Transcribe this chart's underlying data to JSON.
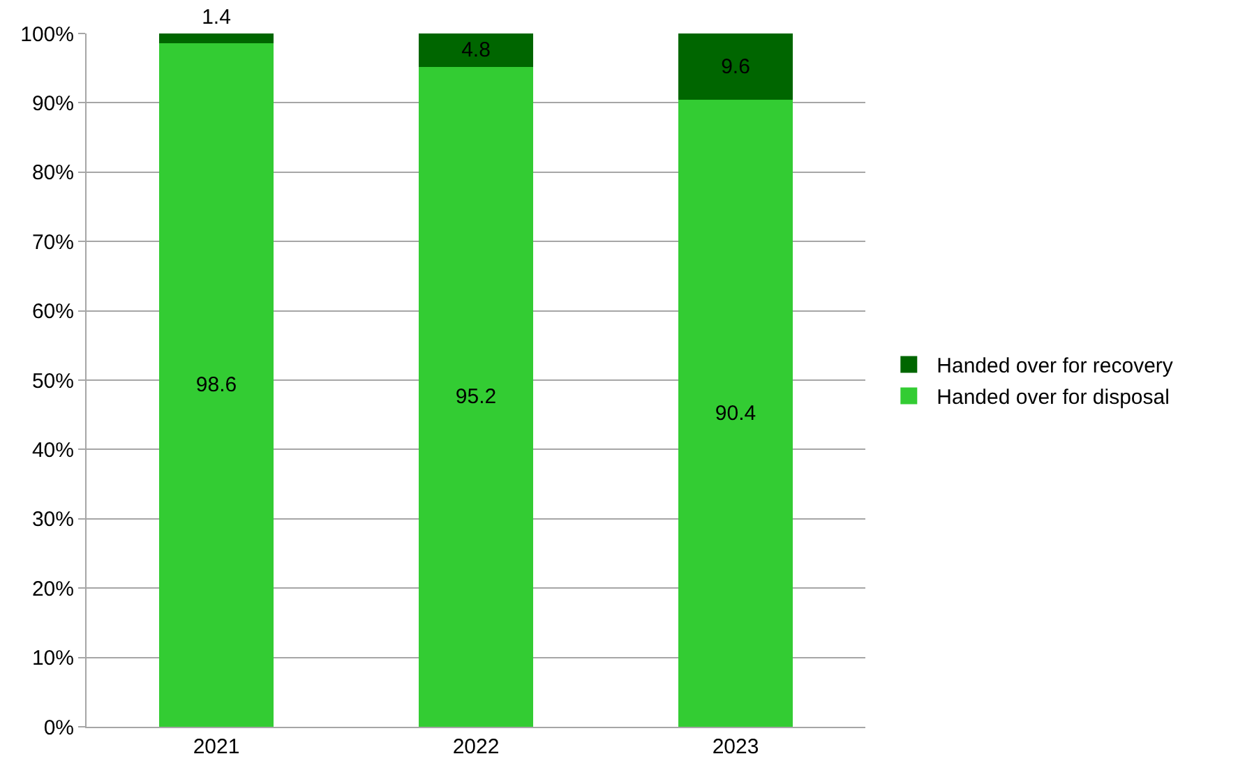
{
  "chart_data": {
    "type": "bar",
    "stacked": true,
    "categories": [
      "2021",
      "2022",
      "2023"
    ],
    "series": [
      {
        "name": "Handed over for disposal",
        "color": "#33cc33",
        "values": [
          98.6,
          95.2,
          90.4
        ]
      },
      {
        "name": "Handed over for recovery",
        "color": "#006600",
        "values": [
          1.4,
          4.8,
          9.6
        ]
      }
    ],
    "ylim": [
      0,
      100
    ],
    "yticks": [
      {
        "value": 0,
        "label": "0%"
      },
      {
        "value": 10,
        "label": "10%"
      },
      {
        "value": 20,
        "label": "20%"
      },
      {
        "value": 30,
        "label": "30%"
      },
      {
        "value": 40,
        "label": "40%"
      },
      {
        "value": 50,
        "label": "50%"
      },
      {
        "value": 60,
        "label": "60%"
      },
      {
        "value": 70,
        "label": "70%"
      },
      {
        "value": 80,
        "label": "80%"
      },
      {
        "value": 90,
        "label": "90%"
      },
      {
        "value": 100,
        "label": "100%"
      }
    ],
    "grid": "y",
    "legend": "right",
    "data_labels": true
  }
}
